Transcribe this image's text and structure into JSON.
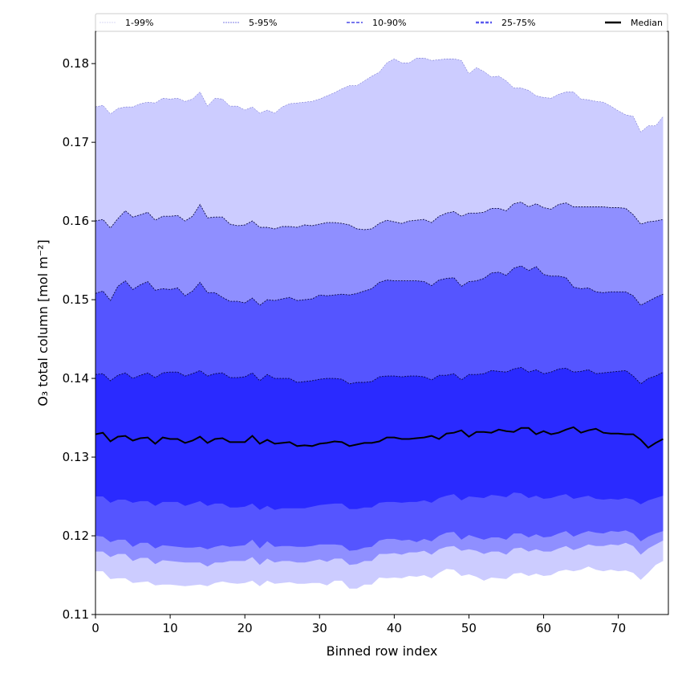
{
  "chart_data": {
    "type": "area",
    "title": "",
    "xlabel": "Binned row index",
    "ylabel": "O₃ total column [mol m⁻²]",
    "xlim": [
      0,
      76.7
    ],
    "ylim": [
      0.11,
      0.1841
    ],
    "xticks": [
      0,
      10,
      20,
      30,
      40,
      50,
      60,
      70
    ],
    "yticks": [
      0.11,
      0.12,
      0.13,
      0.14,
      0.15,
      0.16,
      0.17,
      0.18
    ],
    "ytick_labels": [
      "0.11",
      "0.12",
      "0.13",
      "0.14",
      "0.15",
      "0.16",
      "0.17",
      "0.18"
    ],
    "xtick_labels": [
      "0",
      "10",
      "20",
      "30",
      "40",
      "50",
      "60",
      "70"
    ],
    "grid": false,
    "legend_placement": "top (above axes, horizontal)",
    "legend": [
      {
        "label": "1-99%",
        "fill": "#ccccff",
        "line": "#d8d8f4"
      },
      {
        "label": "5-95%",
        "fill": "#8f8fff",
        "line": "#a8a8ee"
      },
      {
        "label": "10-90%",
        "fill": "#5555ff",
        "line": "#7777ee"
      },
      {
        "label": "25-75%",
        "fill": "#2a2aff",
        "line": "#5a5aee"
      },
      {
        "label": "Median",
        "line": "#000000"
      }
    ],
    "series": {
      "p1": [
        0.1155,
        0.1155,
        0.1145,
        0.1146,
        0.1146,
        0.114,
        0.1141,
        0.1142,
        0.1137,
        0.1138,
        0.1138,
        0.1137,
        0.1136,
        0.1137,
        0.1138,
        0.1136,
        0.114,
        0.1142,
        0.114,
        0.1139,
        0.114,
        0.1143,
        0.1136,
        0.1143,
        0.1139,
        0.114,
        0.1141,
        0.1139,
        0.1139,
        0.114,
        0.114,
        0.1137,
        0.1143,
        0.1143,
        0.1133,
        0.1133,
        0.1138,
        0.1138,
        0.1147,
        0.1146,
        0.1147,
        0.1146,
        0.1149,
        0.1148,
        0.115,
        0.1146,
        0.1153,
        0.1158,
        0.1157,
        0.1149,
        0.1151,
        0.1148,
        0.1143,
        0.1147,
        0.1146,
        0.1145,
        0.1152,
        0.1153,
        0.1149,
        0.1152,
        0.1149,
        0.115,
        0.1155,
        0.1157,
        0.1155,
        0.1157,
        0.1161,
        0.1157,
        0.1155,
        0.1157,
        0.1155,
        0.1156,
        0.1153,
        0.1144,
        0.1153,
        0.1163,
        0.1168
      ],
      "p5": [
        0.118,
        0.118,
        0.1173,
        0.1177,
        0.1177,
        0.1168,
        0.1172,
        0.1172,
        0.1164,
        0.1169,
        0.1168,
        0.1167,
        0.1166,
        0.1166,
        0.1166,
        0.1161,
        0.1166,
        0.1166,
        0.1168,
        0.1168,
        0.1168,
        0.1173,
        0.1163,
        0.1171,
        0.1166,
        0.1168,
        0.1168,
        0.1166,
        0.1166,
        0.1168,
        0.117,
        0.1167,
        0.1171,
        0.1171,
        0.1163,
        0.1164,
        0.1168,
        0.1168,
        0.1177,
        0.1177,
        0.1178,
        0.1176,
        0.1179,
        0.1179,
        0.1181,
        0.1176,
        0.1183,
        0.1186,
        0.1187,
        0.1181,
        0.1183,
        0.1181,
        0.1177,
        0.118,
        0.118,
        0.1176,
        0.1184,
        0.1185,
        0.118,
        0.1183,
        0.118,
        0.118,
        0.1184,
        0.1187,
        0.1182,
        0.1185,
        0.1189,
        0.1187,
        0.1187,
        0.1189,
        0.1188,
        0.1191,
        0.1187,
        0.1176,
        0.1184,
        0.1189,
        0.1194
      ],
      "p10": [
        0.12,
        0.1199,
        0.1192,
        0.1195,
        0.1195,
        0.1186,
        0.1191,
        0.1191,
        0.1184,
        0.1188,
        0.1187,
        0.1186,
        0.1185,
        0.1185,
        0.1186,
        0.1183,
        0.1186,
        0.1188,
        0.1186,
        0.1187,
        0.1188,
        0.1195,
        0.1184,
        0.1193,
        0.1186,
        0.1187,
        0.1187,
        0.1186,
        0.1186,
        0.1187,
        0.1189,
        0.1189,
        0.1189,
        0.1188,
        0.1181,
        0.1182,
        0.1185,
        0.1186,
        0.1194,
        0.1196,
        0.1196,
        0.1194,
        0.1195,
        0.1192,
        0.1196,
        0.1193,
        0.12,
        0.1204,
        0.1205,
        0.1195,
        0.1201,
        0.1198,
        0.1195,
        0.1198,
        0.1198,
        0.1195,
        0.1203,
        0.1203,
        0.1198,
        0.1202,
        0.1198,
        0.1199,
        0.1203,
        0.1206,
        0.1199,
        0.1203,
        0.1206,
        0.1204,
        0.1203,
        0.1206,
        0.1205,
        0.1207,
        0.1203,
        0.1193,
        0.1199,
        0.1203,
        0.1206
      ],
      "p25": [
        0.125,
        0.125,
        0.1242,
        0.1246,
        0.1246,
        0.1242,
        0.1244,
        0.1244,
        0.1238,
        0.1243,
        0.1243,
        0.1243,
        0.1238,
        0.1241,
        0.1244,
        0.1238,
        0.1241,
        0.1241,
        0.1236,
        0.1236,
        0.1237,
        0.1241,
        0.1233,
        0.1238,
        0.1233,
        0.1235,
        0.1235,
        0.1235,
        0.1235,
        0.1237,
        0.1239,
        0.124,
        0.1241,
        0.1241,
        0.1234,
        0.1234,
        0.1236,
        0.1236,
        0.1242,
        0.1243,
        0.1243,
        0.1242,
        0.1243,
        0.1243,
        0.1245,
        0.1242,
        0.1248,
        0.1251,
        0.1253,
        0.1245,
        0.125,
        0.1249,
        0.1248,
        0.1252,
        0.1251,
        0.1249,
        0.1255,
        0.1254,
        0.1248,
        0.1251,
        0.1247,
        0.1248,
        0.1251,
        0.1253,
        0.1247,
        0.1249,
        0.1251,
        0.1247,
        0.1246,
        0.1247,
        0.1246,
        0.1248,
        0.1246,
        0.124,
        0.1245,
        0.1248,
        0.1251
      ],
      "median": [
        0.1329,
        0.1331,
        0.132,
        0.1326,
        0.1327,
        0.1321,
        0.1324,
        0.1325,
        0.1317,
        0.1325,
        0.1323,
        0.1323,
        0.1318,
        0.1321,
        0.1326,
        0.1318,
        0.1323,
        0.1324,
        0.1319,
        0.1319,
        0.1319,
        0.1327,
        0.1317,
        0.1322,
        0.1317,
        0.1318,
        0.1319,
        0.1314,
        0.1315,
        0.1314,
        0.1317,
        0.1318,
        0.132,
        0.1319,
        0.1314,
        0.1316,
        0.1318,
        0.1318,
        0.132,
        0.1325,
        0.1325,
        0.1323,
        0.1323,
        0.1324,
        0.1325,
        0.1327,
        0.1323,
        0.133,
        0.1331,
        0.1334,
        0.1326,
        0.1332,
        0.1332,
        0.1331,
        0.1335,
        0.1333,
        0.1332,
        0.1337,
        0.1337,
        0.1329,
        0.1333,
        0.1329,
        0.1331,
        0.1335,
        0.1338,
        0.1331,
        0.1334,
        0.1336,
        0.1331,
        0.133,
        0.133,
        0.1329,
        0.1329,
        0.1322,
        0.1312,
        0.1318,
        0.1323
      ],
      "p75": [
        0.1405,
        0.1406,
        0.1397,
        0.1404,
        0.1407,
        0.14,
        0.1404,
        0.1407,
        0.1401,
        0.1407,
        0.1408,
        0.1408,
        0.1403,
        0.1406,
        0.141,
        0.1403,
        0.1406,
        0.1407,
        0.1401,
        0.1401,
        0.1402,
        0.1407,
        0.1397,
        0.1405,
        0.14,
        0.14,
        0.14,
        0.1395,
        0.1396,
        0.1397,
        0.1399,
        0.14,
        0.14,
        0.1399,
        0.1393,
        0.1395,
        0.1395,
        0.1396,
        0.1402,
        0.1403,
        0.1403,
        0.1402,
        0.1403,
        0.1403,
        0.1402,
        0.1398,
        0.1404,
        0.1404,
        0.1406,
        0.1398,
        0.1405,
        0.1405,
        0.1406,
        0.141,
        0.1409,
        0.1408,
        0.1412,
        0.1414,
        0.1408,
        0.1411,
        0.1406,
        0.1408,
        0.1412,
        0.1413,
        0.1408,
        0.1409,
        0.1411,
        0.1406,
        0.1407,
        0.1408,
        0.1409,
        0.141,
        0.1403,
        0.1393,
        0.14,
        0.1403,
        0.1408
      ],
      "p90": [
        0.1508,
        0.1511,
        0.1499,
        0.1517,
        0.1524,
        0.1513,
        0.1519,
        0.1523,
        0.1512,
        0.1514,
        0.1513,
        0.1515,
        0.1505,
        0.1511,
        0.1522,
        0.1509,
        0.1509,
        0.1503,
        0.1498,
        0.1498,
        0.1496,
        0.1502,
        0.1493,
        0.15,
        0.1499,
        0.1501,
        0.1503,
        0.1499,
        0.15,
        0.1501,
        0.1506,
        0.1505,
        0.1506,
        0.1507,
        0.1506,
        0.1508,
        0.1511,
        0.1514,
        0.1522,
        0.1525,
        0.1524,
        0.1524,
        0.1524,
        0.1524,
        0.1523,
        0.1518,
        0.1525,
        0.1527,
        0.1528,
        0.1517,
        0.1523,
        0.1524,
        0.1527,
        0.1534,
        0.1535,
        0.1531,
        0.154,
        0.1543,
        0.1537,
        0.1542,
        0.1532,
        0.153,
        0.153,
        0.1528,
        0.1516,
        0.1514,
        0.1515,
        0.151,
        0.1509,
        0.151,
        0.151,
        0.151,
        0.1505,
        0.1493,
        0.1498,
        0.1503,
        0.1507
      ],
      "p95": [
        0.16,
        0.1602,
        0.1591,
        0.1603,
        0.1613,
        0.1605,
        0.1608,
        0.1611,
        0.1601,
        0.1606,
        0.1606,
        0.1607,
        0.16,
        0.1606,
        0.1621,
        0.1604,
        0.1605,
        0.1605,
        0.1596,
        0.1594,
        0.1595,
        0.16,
        0.1592,
        0.1592,
        0.159,
        0.1593,
        0.1593,
        0.1592,
        0.1595,
        0.1594,
        0.1596,
        0.1598,
        0.1598,
        0.1597,
        0.1595,
        0.159,
        0.1589,
        0.159,
        0.1597,
        0.1601,
        0.1599,
        0.1597,
        0.16,
        0.1601,
        0.1602,
        0.1598,
        0.1606,
        0.161,
        0.1612,
        0.1606,
        0.161,
        0.161,
        0.1611,
        0.1616,
        0.1616,
        0.1613,
        0.1622,
        0.1624,
        0.1618,
        0.1622,
        0.1617,
        0.1615,
        0.1621,
        0.1623,
        0.1618,
        0.1618,
        0.1618,
        0.1618,
        0.1618,
        0.1617,
        0.1617,
        0.1616,
        0.1608,
        0.1596,
        0.1599,
        0.16,
        0.1602
      ],
      "p99": [
        0.1745,
        0.1747,
        0.1736,
        0.1743,
        0.1745,
        0.1745,
        0.1749,
        0.1751,
        0.175,
        0.1756,
        0.1755,
        0.1756,
        0.1752,
        0.1755,
        0.1764,
        0.1746,
        0.1756,
        0.1755,
        0.1746,
        0.1746,
        0.1741,
        0.1745,
        0.1737,
        0.1741,
        0.1737,
        0.1745,
        0.1749,
        0.175,
        0.1751,
        0.1752,
        0.1755,
        0.1759,
        0.1763,
        0.1768,
        0.1772,
        0.1772,
        0.1778,
        0.1784,
        0.1789,
        0.1801,
        0.1806,
        0.1801,
        0.1801,
        0.1807,
        0.1807,
        0.1804,
        0.1805,
        0.1806,
        0.1806,
        0.1804,
        0.1787,
        0.1795,
        0.179,
        0.1783,
        0.1784,
        0.1778,
        0.1769,
        0.1769,
        0.1766,
        0.1759,
        0.1757,
        0.1756,
        0.1761,
        0.1764,
        0.1764,
        0.1755,
        0.1754,
        0.1752,
        0.1751,
        0.1746,
        0.174,
        0.1735,
        0.1733,
        0.1713,
        0.1721,
        0.1721,
        0.1733
      ]
    }
  }
}
